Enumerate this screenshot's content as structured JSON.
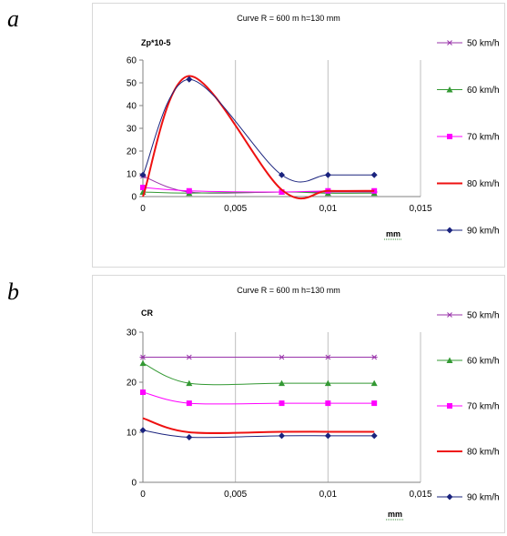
{
  "panels": [
    {
      "letter": "a"
    },
    {
      "letter": "b"
    }
  ],
  "chart_data": [
    {
      "type": "line",
      "title": "Curve R = 600  m  h=130 mm",
      "ylabel": "Zp*10-5",
      "xlabel": "mm",
      "x_ticks": [
        "0",
        "0,005",
        "0,01",
        "0,015"
      ],
      "y_ticks": [
        "0",
        "10",
        "20",
        "30",
        "40",
        "50",
        "60"
      ],
      "xlim": [
        0,
        0.015
      ],
      "ylim": [
        0,
        60
      ],
      "grid": "vertical",
      "legend": "right",
      "x": [
        0,
        0.0025,
        0.0075,
        0.01,
        0.0125
      ],
      "series": [
        {
          "name": "50 km/h",
          "color": "#9933aa",
          "marker": "star",
          "values": [
            9,
            2,
            2,
            2,
            2
          ],
          "width": 1
        },
        {
          "name": "60 km/h",
          "color": "#339933",
          "marker": "triangle",
          "values": [
            2,
            1.5,
            2,
            1.5,
            1.5
          ],
          "width": 1
        },
        {
          "name": "70 km/h",
          "color": "#ff00ff",
          "marker": "square",
          "values": [
            4,
            2.5,
            2,
            2.5,
            2.5
          ],
          "width": 1
        },
        {
          "name": "80 km/h",
          "color": "#ee1111",
          "marker": "none",
          "values": [
            0,
            53,
            3,
            2.5,
            2.5
          ],
          "width": 2
        },
        {
          "name": "90 km/h",
          "color": "#1a237e",
          "marker": "diamond",
          "values": [
            9.5,
            51.5,
            9.5,
            9.5,
            9.5
          ],
          "width": 1
        }
      ]
    },
    {
      "type": "line",
      "title": "Curve R = 600  m  h=130 mm",
      "ylabel": "CR",
      "xlabel": "mm",
      "x_ticks": [
        "0",
        "0,005",
        "0,01",
        "0,015"
      ],
      "y_ticks": [
        "0",
        "10",
        "20",
        "30"
      ],
      "xlim": [
        0,
        0.015
      ],
      "ylim": [
        0,
        30
      ],
      "grid": "vertical",
      "legend": "right",
      "x": [
        0,
        0.0025,
        0.0075,
        0.01,
        0.0125
      ],
      "series": [
        {
          "name": "50 km/h",
          "color": "#9933aa",
          "marker": "star",
          "values": [
            25,
            25,
            25,
            25,
            25
          ],
          "width": 1
        },
        {
          "name": "60 km/h",
          "color": "#339933",
          "marker": "triangle",
          "values": [
            23.8,
            19.8,
            19.8,
            19.8,
            19.8
          ],
          "width": 1
        },
        {
          "name": "70 km/h",
          "color": "#ff00ff",
          "marker": "square",
          "values": [
            18,
            15.8,
            15.8,
            15.8,
            15.8
          ],
          "width": 1
        },
        {
          "name": "80 km/h",
          "color": "#ee1111",
          "marker": "none",
          "values": [
            12.8,
            10,
            10.1,
            10.1,
            10.1
          ],
          "width": 2
        },
        {
          "name": "90 km/h",
          "color": "#1a237e",
          "marker": "diamond",
          "values": [
            10.4,
            9,
            9.3,
            9.3,
            9.3
          ],
          "width": 1
        }
      ]
    }
  ]
}
